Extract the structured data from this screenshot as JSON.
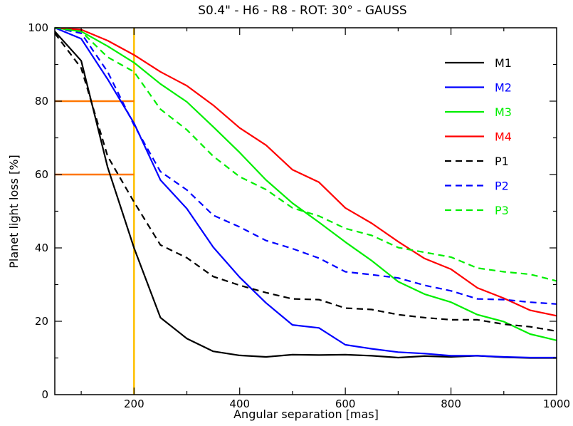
{
  "chart_data": {
    "type": "line",
    "title": "S0.4\" - H6 - R8 - ROT: 30° - GAUSS",
    "xlabel": "Angular separation [mas]",
    "ylabel": "Planet light loss [%]",
    "xlim": [
      50,
      1000
    ],
    "ylim": [
      0,
      100
    ],
    "xticks": [
      200,
      400,
      600,
      800,
      1000
    ],
    "yticks": [
      0,
      20,
      40,
      60,
      80,
      100
    ],
    "grid": false,
    "legend_position": "top-right",
    "x": [
      50,
      100,
      150,
      200,
      250,
      300,
      350,
      400,
      450,
      500,
      550,
      600,
      650,
      700,
      750,
      800,
      850,
      900,
      950,
      1000
    ],
    "series": [
      {
        "name": "M1",
        "color": "#000000",
        "dash": "solid",
        "values": [
          99,
          91,
          62,
          40,
          21,
          15.3,
          11.8,
          10.7,
          10.3,
          10.9,
          10.8,
          10.9,
          10.6,
          10.1,
          10.5,
          10.3,
          10.6,
          10.2,
          10.0,
          10.0
        ]
      },
      {
        "name": "M2",
        "color": "#0000ff",
        "dash": "solid",
        "values": [
          100,
          97,
          86,
          74,
          58.5,
          50.7,
          40.2,
          32,
          25,
          19,
          18.2,
          13.6,
          12.5,
          11.6,
          11.2,
          10.6,
          10.6,
          10.3,
          10.1,
          10.1
        ]
      },
      {
        "name": "M3",
        "color": "#00ee00",
        "dash": "solid",
        "values": [
          100,
          99,
          95,
          90.5,
          84.7,
          79.8,
          73,
          66,
          58.5,
          52.2,
          47,
          41.6,
          36.5,
          30.8,
          27.4,
          25.2,
          21.8,
          19.9,
          16.5,
          14.8
        ]
      },
      {
        "name": "M4",
        "color": "#ff0000",
        "dash": "solid",
        "values": [
          100,
          99.5,
          96.5,
          92.6,
          88,
          84.2,
          78.9,
          72.7,
          68,
          61.3,
          57.9,
          50.9,
          46.7,
          41.7,
          37.1,
          34.2,
          29.1,
          26.3,
          23,
          21.5
        ]
      },
      {
        "name": "P1",
        "color": "#000000",
        "dash": "dashed",
        "values": [
          98.5,
          89,
          65,
          52.5,
          40.8,
          37.3,
          32.2,
          29.8,
          27.8,
          26.1,
          25.9,
          23.6,
          23.2,
          21.8,
          21,
          20.4,
          20.4,
          19.2,
          18.5,
          17.3
        ]
      },
      {
        "name": "P2",
        "color": "#0000ff",
        "dash": "dashed",
        "values": [
          100,
          98.5,
          88,
          73.5,
          60.8,
          55.8,
          48.9,
          45.7,
          42,
          39.8,
          37.2,
          33.5,
          32.7,
          31.8,
          29.8,
          28.3,
          26.1,
          25.9,
          25.2,
          24.7
        ]
      },
      {
        "name": "P3",
        "color": "#00ee00",
        "dash": "dashed",
        "values": [
          100,
          99,
          92,
          88,
          77.8,
          72.2,
          65,
          59.4,
          55.9,
          50.9,
          48.7,
          45.3,
          43.4,
          40.1,
          38.8,
          37.5,
          34.5,
          33.5,
          32.8,
          31
        ]
      }
    ],
    "reference_lines": [
      {
        "orientation": "vertical",
        "x": 200,
        "color": "#ffc000"
      },
      {
        "orientation": "horizontal",
        "y": 80,
        "x_from": 50,
        "x_to": 200,
        "color": "#ff7700"
      },
      {
        "orientation": "horizontal",
        "y": 60,
        "x_from": 50,
        "x_to": 200,
        "color": "#ff7700"
      }
    ]
  }
}
